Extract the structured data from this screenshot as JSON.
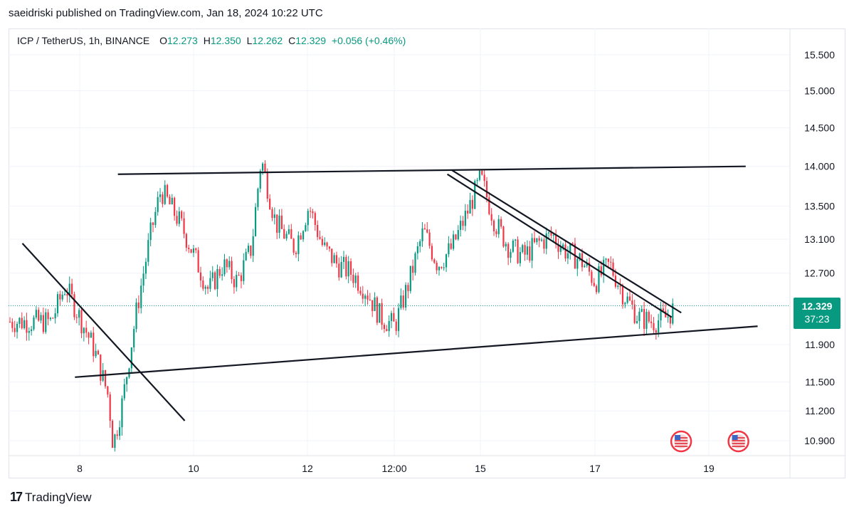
{
  "header": {
    "published_text": "saeidriski published on TradingView.com, Jan 18, 2024 10:22 UTC"
  },
  "legend": {
    "symbol": "ICP / TetherUS, 1h, BINANCE",
    "open_label": "O",
    "open": "12.273",
    "high_label": "H",
    "high": "12.350",
    "low_label": "L",
    "low": "12.262",
    "close_label": "C",
    "close": "12.329",
    "change": "+0.056 (+0.46%)"
  },
  "price_tag": {
    "price": "12.329",
    "countdown": "37:23"
  },
  "footer": {
    "logo_glyph": "17",
    "brand": "TradingView"
  },
  "colors": {
    "up": "#089981",
    "down": "#f23645",
    "trendline": "#131722",
    "price_line": "#089981",
    "grid": "#f0f3fa"
  },
  "chart_data": {
    "type": "candlestick",
    "y_ticks": [
      "15.500",
      "15.000",
      "14.500",
      "14.000",
      "13.500",
      "13.100",
      "12.700",
      "11.900",
      "11.500",
      "11.200",
      "10.900"
    ],
    "x_ticks": [
      "8",
      "10",
      "12",
      "12:00",
      "15",
      "17",
      "19"
    ],
    "current_price": 12.329,
    "log_scale": true,
    "series": [
      {
        "t": "Jan 7 12:00",
        "close": 12.15
      },
      {
        "t": "Jan 7 18:00",
        "close": 12.55
      },
      {
        "t": "Jan 8 00:00",
        "close": 12.2
      },
      {
        "t": "Jan 8 06:00",
        "close": 11.85
      },
      {
        "t": "Jan 8 12:00",
        "close": 11.35
      },
      {
        "t": "Jan 8 14:00",
        "close": 10.85
      },
      {
        "t": "Jan 8 18:00",
        "close": 11.3
      },
      {
        "t": "Jan 9 00:00",
        "close": 12.3
      },
      {
        "t": "Jan 9 06:00",
        "close": 13.2
      },
      {
        "t": "Jan 9 10:00",
        "close": 13.7
      },
      {
        "t": "Jan 9 18:00",
        "close": 13.3
      },
      {
        "t": "Jan 10 00:00",
        "close": 12.9
      },
      {
        "t": "Jan 10 06:00",
        "close": 12.5
      },
      {
        "t": "Jan 10 12:00",
        "close": 12.8
      },
      {
        "t": "Jan 10 18:00",
        "close": 12.6
      },
      {
        "t": "Jan 11 00:00",
        "close": 13.0
      },
      {
        "t": "Jan 11 04:00",
        "close": 14.1
      },
      {
        "t": "Jan 11 10:00",
        "close": 13.3
      },
      {
        "t": "Jan 11 18:00",
        "close": 13.0
      },
      {
        "t": "Jan 12 00:00",
        "close": 13.5
      },
      {
        "t": "Jan 12 06:00",
        "close": 13.0
      },
      {
        "t": "Jan 12 12:00",
        "close": 12.8
      },
      {
        "t": "Jan 12 18:00",
        "close": 12.7
      },
      {
        "t": "Jan 13 00:00",
        "close": 12.5
      },
      {
        "t": "Jan 13 06:00",
        "close": 12.2
      },
      {
        "t": "Jan 13 12:00",
        "close": 12.1
      },
      {
        "t": "Jan 13 18:00",
        "close": 12.6
      },
      {
        "t": "Jan 14 00:00",
        "close": 13.2
      },
      {
        "t": "Jan 14 06:00",
        "close": 12.8
      },
      {
        "t": "Jan 14 12:00",
        "close": 13.0
      },
      {
        "t": "Jan 14 18:00",
        "close": 13.4
      },
      {
        "t": "Jan 15 00:00",
        "close": 13.85
      },
      {
        "t": "Jan 15 06:00",
        "close": 13.3
      },
      {
        "t": "Jan 15 12:00",
        "close": 13.0
      },
      {
        "t": "Jan 15 18:00",
        "close": 12.9
      },
      {
        "t": "Jan 16 00:00",
        "close": 13.05
      },
      {
        "t": "Jan 16 06:00",
        "close": 13.15
      },
      {
        "t": "Jan 16 12:00",
        "close": 12.95
      },
      {
        "t": "Jan 16 18:00",
        "close": 12.85
      },
      {
        "t": "Jan 17 00:00",
        "close": 12.6
      },
      {
        "t": "Jan 17 06:00",
        "close": 12.8
      },
      {
        "t": "Jan 17 12:00",
        "close": 12.45
      },
      {
        "t": "Jan 17 18:00",
        "close": 12.2
      },
      {
        "t": "Jan 18 00:00",
        "close": 12.15
      },
      {
        "t": "Jan 18 06:00",
        "close": 12.2
      },
      {
        "t": "Jan 18 10:00",
        "close": 12.329
      }
    ],
    "trendlines": [
      {
        "name": "resistance",
        "from": {
          "t": "Jan 8 16:00",
          "price": 13.9
        },
        "to": {
          "t": "Jan 19 15:00",
          "price": 14.0
        }
      },
      {
        "name": "support",
        "from": {
          "t": "Jan 7 22:00",
          "price": 11.55
        },
        "to": {
          "t": "Jan 19 20:00",
          "price": 12.1
        }
      },
      {
        "name": "descending-upper",
        "from": {
          "t": "Jan 14 12:00",
          "price": 13.95
        },
        "to": {
          "t": "Jan 18 12:00",
          "price": 12.25
        }
      },
      {
        "name": "descending-lower",
        "from": {
          "t": "Jan 14 10:00",
          "price": 13.9
        },
        "to": {
          "t": "Jan 18 08:00",
          "price": 12.2
        }
      },
      {
        "name": "early-downtrend",
        "from": {
          "t": "Jan 7 00:00",
          "price": 13.05
        },
        "to": {
          "t": "Jan 9 20:00",
          "price": 11.1
        }
      }
    ],
    "events": [
      {
        "t": "Jan 18 06:00",
        "icon": "us-flag-icon"
      },
      {
        "t": "Jan 19 06:00",
        "icon": "us-flag-icon"
      }
    ]
  }
}
